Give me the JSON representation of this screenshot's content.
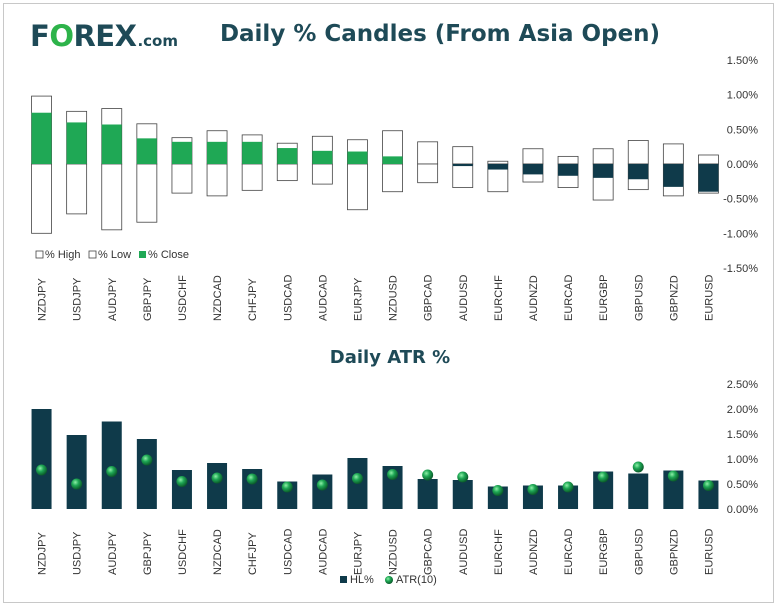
{
  "logo": {
    "pre": "F",
    "o": "O",
    "post": "REX",
    "suffix": ".com"
  },
  "colors": {
    "navy": "#0f3a4a",
    "green": "#1fa855",
    "title": "#1e4a57"
  },
  "chart_data": [
    {
      "type": "bar",
      "title": "Daily % Candles (From Asia Open)",
      "categories": [
        "NZDJPY",
        "USDJPY",
        "AUDJPY",
        "GBPJPY",
        "USDCHF",
        "NZDCAD",
        "CHFJPY",
        "USDCAD",
        "AUDCAD",
        "EURJPY",
        "NZDUSD",
        "GBPCAD",
        "AUDUSD",
        "EURCHF",
        "AUDNZD",
        "EURCAD",
        "EURGBP",
        "GBPUSD",
        "GBPNZD",
        "EURUSD"
      ],
      "series": [
        {
          "name": "% High",
          "values": [
            0.98,
            0.76,
            0.8,
            0.58,
            0.38,
            0.48,
            0.42,
            0.3,
            0.4,
            0.35,
            0.48,
            0.32,
            0.25,
            0.04,
            0.22,
            0.11,
            0.22,
            0.34,
            0.29,
            0.13
          ]
        },
        {
          "name": "% Low",
          "values": [
            -1.0,
            -0.72,
            -0.95,
            -0.84,
            -0.42,
            -0.46,
            -0.38,
            -0.24,
            -0.29,
            -0.66,
            -0.4,
            -0.27,
            -0.34,
            -0.4,
            -0.26,
            -0.34,
            -0.52,
            -0.37,
            -0.46,
            -0.42
          ]
        },
        {
          "name": "% Close",
          "values": [
            0.74,
            0.6,
            0.57,
            0.37,
            0.32,
            0.32,
            0.32,
            0.23,
            0.19,
            0.18,
            0.11,
            0.0,
            -0.03,
            -0.08,
            -0.15,
            -0.17,
            -0.2,
            -0.22,
            -0.33,
            -0.4
          ]
        }
      ],
      "yticks": [
        "1.50%",
        "1.00%",
        "0.50%",
        "0.00%",
        "-0.50%",
        "-1.00%",
        "-1.50%"
      ],
      "ylim": [
        -1.5,
        1.5
      ]
    },
    {
      "type": "bar",
      "title": "Daily ATR %",
      "categories": [
        "NZDJPY",
        "USDJPY",
        "AUDJPY",
        "GBPJPY",
        "USDCHF",
        "NZDCAD",
        "CHFJPY",
        "USDCAD",
        "AUDCAD",
        "EURJPY",
        "NZDUSD",
        "GBPCAD",
        "AUDUSD",
        "EURCHF",
        "AUDNZD",
        "EURCAD",
        "EURGBP",
        "GBPUSD",
        "GBPNZD",
        "EURUSD"
      ],
      "series": [
        {
          "name": "HL%",
          "values": [
            2.0,
            1.48,
            1.75,
            1.4,
            0.78,
            0.92,
            0.8,
            0.55,
            0.69,
            1.02,
            0.86,
            0.6,
            0.58,
            0.45,
            0.47,
            0.47,
            0.75,
            0.71,
            0.77,
            0.57
          ]
        },
        {
          "name": "ATR(10)",
          "values": [
            0.78,
            0.5,
            0.75,
            0.98,
            0.55,
            0.62,
            0.6,
            0.44,
            0.48,
            0.61,
            0.69,
            0.68,
            0.64,
            0.37,
            0.39,
            0.44,
            0.64,
            0.84,
            0.66,
            0.47
          ]
        }
      ],
      "yticks": [
        "2.50%",
        "2.00%",
        "1.50%",
        "1.00%",
        "0.50%",
        "0.00%"
      ],
      "ylim": [
        0,
        2.5
      ]
    }
  ]
}
